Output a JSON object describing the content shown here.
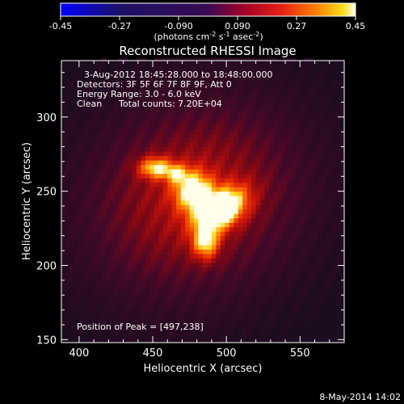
{
  "chart_data": {
    "type": "heatmap",
    "title": "Reconstructed RHESSI Image",
    "xlabel": "Heliocentric X (arcsec)",
    "ylabel": "Heliocentric Y (arcsec)",
    "xlim": [
      388,
      580
    ],
    "ylim": [
      148,
      338
    ],
    "xticks": [
      400,
      450,
      500,
      550
    ],
    "yticks": [
      150,
      200,
      250,
      300
    ],
    "colorbar": {
      "ticks": [
        "-0.45",
        "-0.27",
        "-0.090",
        "0.090",
        "0.27",
        "0.45"
      ],
      "range": [
        -0.45,
        0.45
      ],
      "units_parts": [
        "(photons cm",
        "-2",
        " s",
        "-1",
        " asec",
        "-2",
        ")"
      ]
    },
    "annotations": [
      "3-Aug-2012 18:45:28.000 to 18:48:00.000",
      "Detectors: 3F 5F 6F 7F 8F 9F, Att 0",
      "Energy Range: 3.0 - 6.0 keV",
      "Clean",
      "Total counts: 7.20E+04"
    ],
    "peak_label": "Position of Peak = [497,238]",
    "peak": [
      497,
      238
    ],
    "sources": [
      {
        "x": 497,
        "y": 238,
        "sx": 13,
        "sy": 8,
        "rot": 35,
        "amp": 0.45
      },
      {
        "x": 478,
        "y": 250,
        "sx": 9,
        "sy": 10,
        "rot": 25,
        "amp": 0.34
      },
      {
        "x": 452,
        "y": 266,
        "sx": 8,
        "sy": 5,
        "rot": 0,
        "amp": 0.3
      },
      {
        "x": 466,
        "y": 262,
        "sx": 5,
        "sy": 4,
        "rot": 0,
        "amp": 0.18
      },
      {
        "x": 486,
        "y": 216,
        "sx": 6,
        "sy": 8,
        "rot": 0,
        "amp": 0.3
      },
      {
        "x": 478,
        "y": 246,
        "sx": 48,
        "sy": 40,
        "rot": 30,
        "amp": 0.17
      }
    ]
  },
  "timestamp": "8-May-2014 14:02"
}
